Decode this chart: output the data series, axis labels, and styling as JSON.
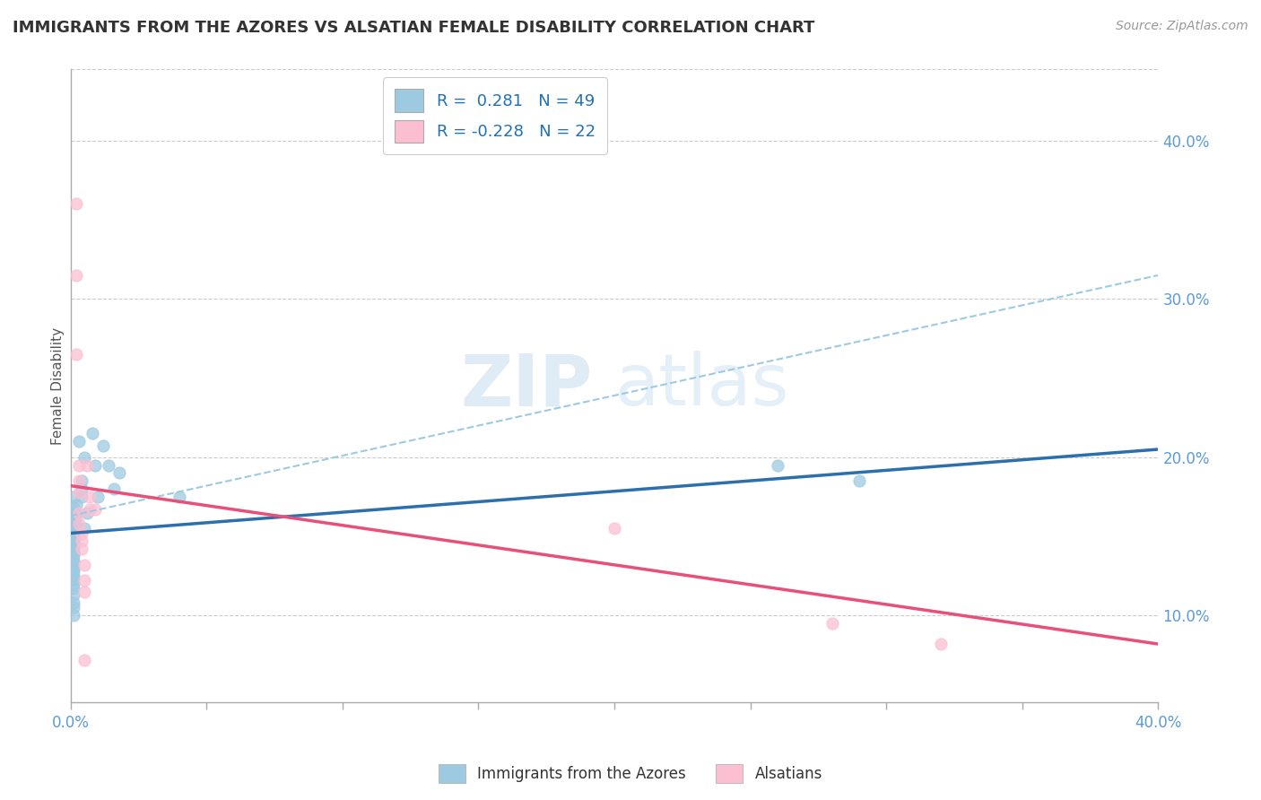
{
  "title": "IMMIGRANTS FROM THE AZORES VS ALSATIAN FEMALE DISABILITY CORRELATION CHART",
  "source": "Source: ZipAtlas.com",
  "ylabel": "Female Disability",
  "legend_blue": {
    "R": 0.281,
    "N": 49
  },
  "legend_pink": {
    "R": -0.228,
    "N": 22
  },
  "watermark_zip": "ZIP",
  "watermark_atlas": "atlas",
  "blue_color": "#9ecae1",
  "pink_color": "#fcbfd2",
  "blue_line_color": "#2c6fad",
  "pink_line_color": "#e8507a",
  "blue_dash_color": "#9ecae1",
  "blue_scatter": [
    [
      0.001,
      0.175
    ],
    [
      0.001,
      0.163
    ],
    [
      0.001,
      0.168
    ],
    [
      0.001,
      0.155
    ],
    [
      0.001,
      0.16
    ],
    [
      0.001,
      0.155
    ],
    [
      0.001,
      0.153
    ],
    [
      0.001,
      0.15
    ],
    [
      0.001,
      0.15
    ],
    [
      0.001,
      0.148
    ],
    [
      0.001,
      0.147
    ],
    [
      0.001,
      0.145
    ],
    [
      0.001,
      0.143
    ],
    [
      0.001,
      0.14
    ],
    [
      0.001,
      0.14
    ],
    [
      0.001,
      0.138
    ],
    [
      0.001,
      0.135
    ],
    [
      0.001,
      0.133
    ],
    [
      0.001,
      0.13
    ],
    [
      0.001,
      0.128
    ],
    [
      0.001,
      0.125
    ],
    [
      0.001,
      0.123
    ],
    [
      0.001,
      0.12
    ],
    [
      0.001,
      0.117
    ],
    [
      0.001,
      0.113
    ],
    [
      0.001,
      0.108
    ],
    [
      0.001,
      0.105
    ],
    [
      0.001,
      0.1
    ],
    [
      0.002,
      0.17
    ],
    [
      0.002,
      0.165
    ],
    [
      0.002,
      0.158
    ],
    [
      0.002,
      0.155
    ],
    [
      0.003,
      0.21
    ],
    [
      0.004,
      0.185
    ],
    [
      0.004,
      0.175
    ],
    [
      0.004,
      0.18
    ],
    [
      0.005,
      0.155
    ],
    [
      0.005,
      0.2
    ],
    [
      0.006,
      0.165
    ],
    [
      0.008,
      0.215
    ],
    [
      0.009,
      0.195
    ],
    [
      0.01,
      0.175
    ],
    [
      0.012,
      0.207
    ],
    [
      0.014,
      0.195
    ],
    [
      0.016,
      0.18
    ],
    [
      0.018,
      0.19
    ],
    [
      0.04,
      0.175
    ],
    [
      0.26,
      0.195
    ],
    [
      0.29,
      0.185
    ]
  ],
  "pink_scatter": [
    [
      0.002,
      0.36
    ],
    [
      0.002,
      0.315
    ],
    [
      0.002,
      0.265
    ],
    [
      0.003,
      0.195
    ],
    [
      0.003,
      0.185
    ],
    [
      0.003,
      0.178
    ],
    [
      0.003,
      0.165
    ],
    [
      0.003,
      0.158
    ],
    [
      0.004,
      0.152
    ],
    [
      0.004,
      0.147
    ],
    [
      0.004,
      0.142
    ],
    [
      0.005,
      0.132
    ],
    [
      0.005,
      0.122
    ],
    [
      0.005,
      0.115
    ],
    [
      0.005,
      0.072
    ],
    [
      0.006,
      0.195
    ],
    [
      0.007,
      0.175
    ],
    [
      0.007,
      0.167
    ],
    [
      0.009,
      0.167
    ],
    [
      0.2,
      0.155
    ],
    [
      0.28,
      0.095
    ],
    [
      0.32,
      0.082
    ]
  ],
  "blue_line": [
    [
      0.0,
      0.152
    ],
    [
      0.4,
      0.205
    ]
  ],
  "blue_dash_line": [
    [
      0.0,
      0.163
    ],
    [
      0.4,
      0.315
    ]
  ],
  "pink_line": [
    [
      0.0,
      0.182
    ],
    [
      0.4,
      0.082
    ]
  ],
  "xlim": [
    0.0,
    0.4
  ],
  "ylim": [
    0.045,
    0.445
  ],
  "yticks": [
    0.1,
    0.2,
    0.3,
    0.4
  ],
  "xtick_positions": [
    0.0,
    0.05,
    0.1,
    0.15,
    0.2,
    0.25,
    0.3,
    0.35,
    0.4
  ],
  "background_color": "#ffffff",
  "grid_color": "#cccccc"
}
